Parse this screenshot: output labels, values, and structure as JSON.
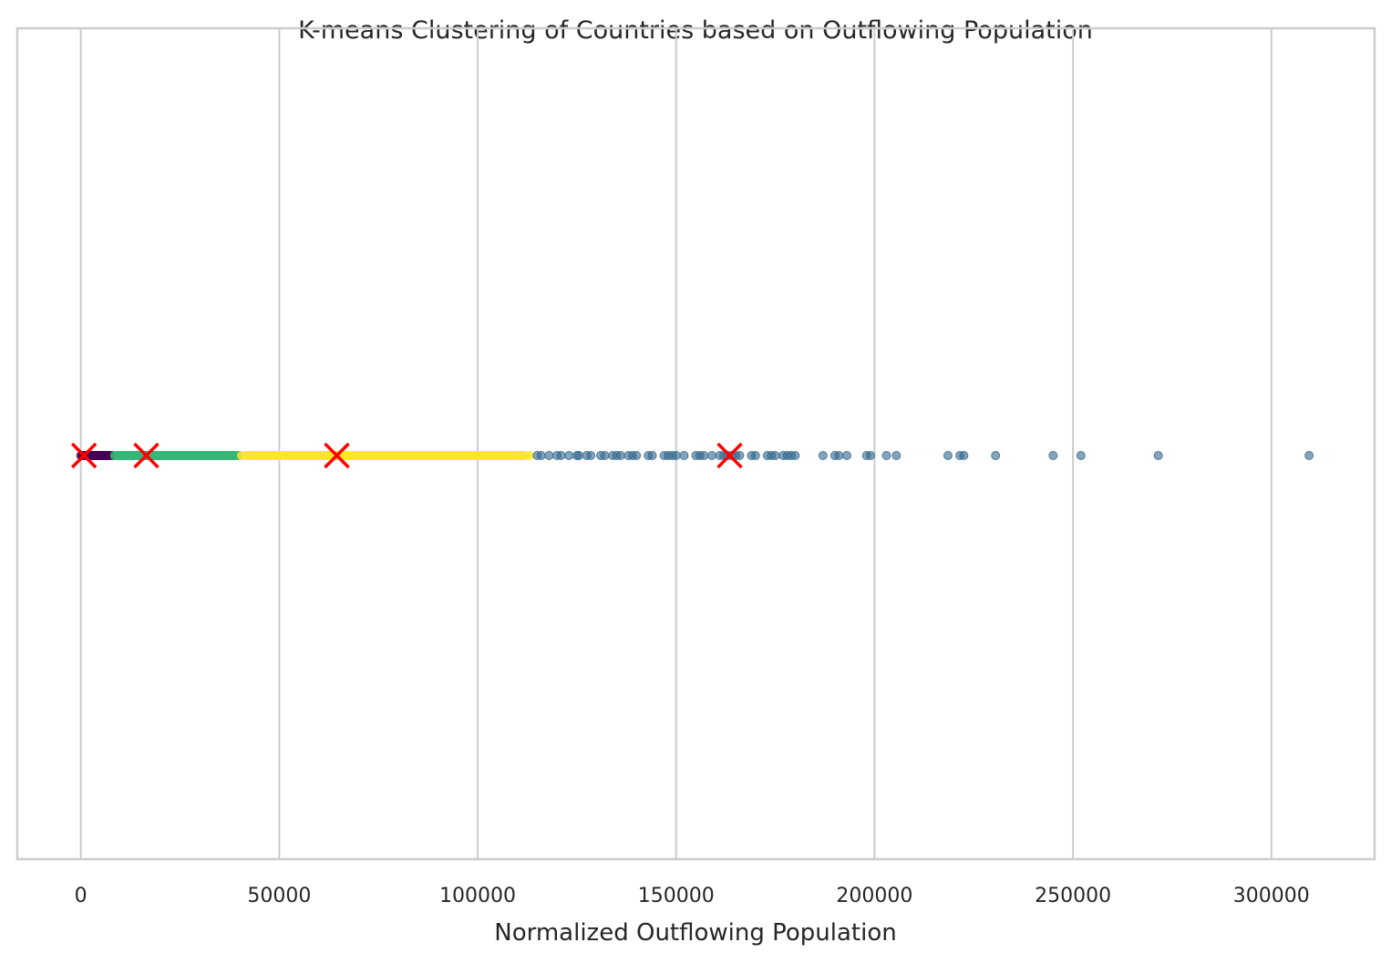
{
  "chart_data": {
    "type": "scatter",
    "title": "K-means Clustering of Countries based on Outflowing Population",
    "xlabel": "Normalized Outflowing Population",
    "ylabel": "",
    "xlim": [
      -16000,
      326000
    ],
    "xticks": [
      0,
      50000,
      100000,
      150000,
      200000,
      250000,
      300000
    ],
    "xtick_labels": [
      "0",
      "50000",
      "100000",
      "150000",
      "200000",
      "250000",
      "300000"
    ],
    "grid": "vertical",
    "legend": "none",
    "series": [
      {
        "color": "#440154",
        "x_range": [
          0,
          8000
        ],
        "points": [
          0,
          500,
          1000,
          1500,
          2000,
          2500,
          3000,
          3500,
          4000,
          4500,
          5000,
          5500,
          6000,
          6500,
          7000,
          7500,
          8000
        ]
      },
      {
        "color": "#35b779",
        "x_range": [
          8000,
          40000
        ],
        "points": [
          8500,
          9500,
          10500,
          11500,
          12500,
          13500,
          14500,
          15500,
          16500,
          17500,
          18500,
          19500,
          20500,
          21500,
          22500,
          23500,
          24500,
          25500,
          26500,
          27500,
          28500,
          29500,
          30500,
          31500,
          32500,
          33500,
          34500,
          35500,
          36500,
          37500,
          38500,
          39500,
          40000
        ]
      },
      {
        "color": "#fde725",
        "x_range": [
          40500,
          113000
        ],
        "points": [
          40500,
          41500,
          42500,
          43500,
          44500,
          45500,
          46500,
          47500,
          48500,
          49500,
          50500,
          51500,
          52500,
          53500,
          54500,
          55500,
          56500,
          57500,
          58500,
          59500,
          60500,
          61500,
          62500,
          63500,
          64500,
          65500,
          66500,
          67500,
          68500,
          69500,
          70500,
          71500,
          72500,
          73500,
          74500,
          75500,
          76500,
          77500,
          78500,
          79500,
          80500,
          81500,
          82500,
          83500,
          84500,
          85500,
          86500,
          87500,
          88500,
          89500,
          90500,
          92000,
          93500,
          95000,
          96500,
          98000,
          99500,
          101000,
          102500,
          104000,
          105500,
          107000,
          108500,
          110000,
          111500,
          113000
        ]
      },
      {
        "color": "#31688e",
        "x_range": [
          115000,
          309500
        ],
        "points": [
          115000,
          116000,
          118000,
          120000,
          121000,
          123000,
          125000,
          125500,
          127500,
          128500,
          131000,
          132000,
          134000,
          135000,
          136000,
          138000,
          139000,
          140000,
          143000,
          144000,
          147000,
          148000,
          149000,
          150000,
          152000,
          155000,
          156000,
          157000,
          159000,
          161000,
          162000,
          163000,
          164000,
          165000,
          166000,
          169000,
          170000,
          173000,
          174000,
          175000,
          177000,
          178000,
          179000,
          180000,
          187000,
          190000,
          191000,
          193000,
          198000,
          199000,
          203000,
          205500,
          218500,
          221500,
          222500,
          230500,
          245000,
          252000,
          271500,
          309500
        ]
      }
    ],
    "centroids": [
      {
        "x": 800,
        "color": "#ff0000"
      },
      {
        "x": 16500,
        "color": "#ff0000"
      },
      {
        "x": 64500,
        "color": "#ff0000"
      },
      {
        "x": 163500,
        "color": "#ff0000"
      }
    ]
  }
}
